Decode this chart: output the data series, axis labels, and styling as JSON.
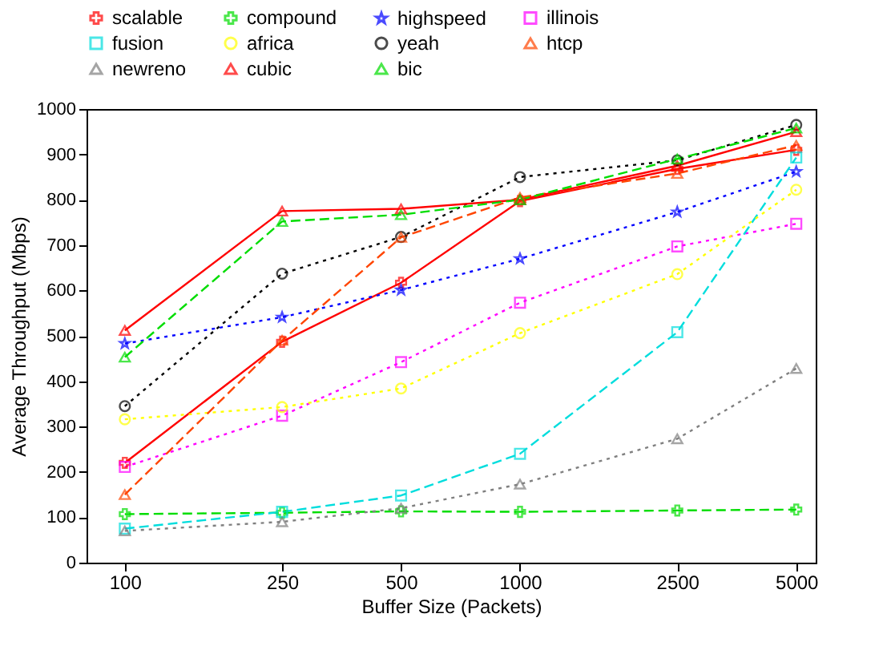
{
  "chart_data": {
    "type": "line",
    "xlabel": "Buffer Size (Packets)",
    "ylabel": "Average Throughput (Mbps)",
    "log": "x",
    "x": [
      100,
      250,
      500,
      1000,
      2500,
      5000
    ],
    "xlim": [
      80,
      5600
    ],
    "xticks": [
      100,
      250,
      500,
      1000,
      2500,
      5000
    ],
    "ylim": [
      0,
      1000
    ],
    "yticks": [
      0,
      100,
      200,
      300,
      400,
      500,
      600,
      700,
      800,
      900,
      1000
    ],
    "grid": false,
    "legend": "top",
    "series": [
      {
        "name": "scalable",
        "color": "#ff0000",
        "line_style": "solid",
        "marker": "cross",
        "values": [
          220,
          487,
          617,
          797,
          868,
          910
        ]
      },
      {
        "name": "compound",
        "color": "#00dd00",
        "line_style": "dashed",
        "marker": "cross",
        "values": [
          107,
          110,
          113,
          112,
          115,
          117
        ]
      },
      {
        "name": "highspeed",
        "color": "#0000ff",
        "line_style": "dotted",
        "marker": "star",
        "values": [
          483,
          541,
          601,
          670,
          773,
          862
        ]
      },
      {
        "name": "illinois",
        "color": "#ff00ff",
        "line_style": "dotted",
        "marker": "square",
        "values": [
          211,
          324,
          442,
          573,
          697,
          747
        ]
      },
      {
        "name": "fusion",
        "color": "#00dddd",
        "line_style": "dashed",
        "marker": "square",
        "values": [
          75,
          112,
          148,
          240,
          508,
          893
        ]
      },
      {
        "name": "africa",
        "color": "#ffff00",
        "line_style": "dotted",
        "marker": "circle",
        "values": [
          316,
          343,
          384,
          506,
          636,
          822
        ]
      },
      {
        "name": "yeah",
        "color": "#000000",
        "line_style": "dotted",
        "marker": "circle",
        "values": [
          345,
          637,
          718,
          850,
          887,
          965
        ]
      },
      {
        "name": "htcp",
        "color": "#ff4500",
        "line_style": "dashed",
        "marker": "triangle",
        "values": [
          150,
          490,
          717,
          805,
          858,
          920
        ]
      },
      {
        "name": "newreno",
        "color": "#808080",
        "line_style": "dotted",
        "marker": "triangle",
        "values": [
          70,
          90,
          120,
          173,
          273,
          428
        ]
      },
      {
        "name": "cubic",
        "color": "#ff0000",
        "line_style": "solid",
        "marker": "triangle",
        "values": [
          512,
          775,
          780,
          800,
          875,
          950
        ]
      },
      {
        "name": "bic",
        "color": "#00dd00",
        "line_style": "dashed",
        "marker": "triangle",
        "values": [
          453,
          752,
          767,
          800,
          890,
          958
        ]
      }
    ]
  }
}
